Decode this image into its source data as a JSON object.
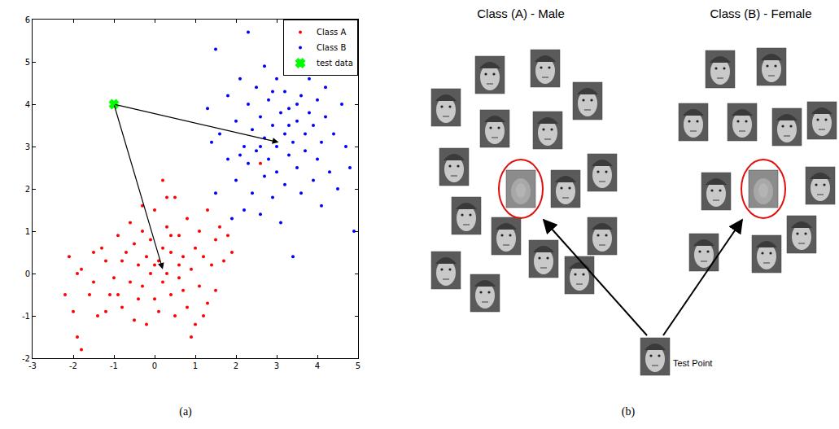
{
  "chart_data": {
    "type": "scatter",
    "xlim": [
      -3,
      5
    ],
    "xticks": [
      -3,
      -2,
      -1,
      0,
      1,
      2,
      3,
      4,
      5
    ],
    "ylim": [
      -2,
      6
    ],
    "yticks": [
      -2,
      -1,
      0,
      1,
      2,
      3,
      4,
      5,
      6
    ],
    "grid": false,
    "legend": "top right",
    "series": [
      {
        "name": "Class A",
        "color": "#ff0000",
        "marker": "dot",
        "x": [
          -2.2,
          -2.0,
          -1.9,
          -1.8,
          -1.9,
          -1.8,
          -1.6,
          -1.5,
          -1.4,
          -1.3,
          -1.2,
          -1.1,
          -1.0,
          -0.9,
          -0.8,
          -0.8,
          -0.7,
          -0.6,
          -0.6,
          -0.5,
          -0.5,
          -0.4,
          -0.4,
          -0.3,
          -0.3,
          -0.2,
          -0.2,
          -0.1,
          -0.1,
          0.0,
          0.0,
          0.1,
          0.1,
          0.2,
          0.2,
          0.3,
          0.3,
          0.4,
          0.4,
          0.5,
          0.5,
          0.6,
          0.6,
          0.7,
          0.7,
          0.8,
          0.8,
          0.9,
          1.0,
          1.0,
          1.1,
          1.1,
          1.2,
          1.3,
          1.3,
          1.4,
          1.5,
          1.5,
          1.6,
          1.7,
          1.8,
          1.9,
          0.2,
          0.3,
          -0.3,
          0.9,
          -1.5,
          -0.9,
          0.0,
          0.6,
          2.6,
          -2.1,
          -1.2,
          1.2,
          0.4
        ],
        "y": [
          -0.5,
          -0.9,
          -1.5,
          -1.8,
          0.0,
          0.1,
          -0.5,
          -0.2,
          -1.0,
          0.6,
          0.3,
          -0.5,
          -0.1,
          0.9,
          0.3,
          -0.8,
          0.5,
          -0.2,
          1.2,
          0.7,
          -1.1,
          0.2,
          -0.6,
          1.0,
          -0.3,
          0.4,
          -1.2,
          0.0,
          0.8,
          -0.6,
          1.5,
          0.3,
          -0.9,
          0.6,
          -0.2,
          1.1,
          0.0,
          -0.5,
          0.5,
          1.8,
          -1.0,
          0.2,
          0.9,
          -0.4,
          0.4,
          1.3,
          -0.8,
          0.1,
          0.6,
          -1.2,
          1.0,
          -0.3,
          0.4,
          -0.7,
          1.5,
          0.2,
          0.8,
          -0.4,
          1.1,
          0.3,
          0.9,
          0.5,
          2.2,
          1.8,
          1.6,
          -1.5,
          0.5,
          -0.5,
          0.2,
          -0.1,
          2.6,
          0.4,
          -0.9,
          -1.0,
          0.9
        ]
      },
      {
        "name": "Class B",
        "color": "#0000ff",
        "marker": "dot",
        "x": [
          1.5,
          2.3,
          1.3,
          1.4,
          1.5,
          1.6,
          1.8,
          1.8,
          1.9,
          2.0,
          2.0,
          2.1,
          2.2,
          2.2,
          2.3,
          2.3,
          2.4,
          2.4,
          2.5,
          2.5,
          2.6,
          2.6,
          2.7,
          2.7,
          2.7,
          2.8,
          2.8,
          2.9,
          2.9,
          3.0,
          3.0,
          3.0,
          3.1,
          3.1,
          3.2,
          3.2,
          3.2,
          3.3,
          3.3,
          3.4,
          3.4,
          3.4,
          3.5,
          3.5,
          3.6,
          3.6,
          3.7,
          3.7,
          3.8,
          3.8,
          3.9,
          3.9,
          4.0,
          4.0,
          4.1,
          4.1,
          4.2,
          4.2,
          4.3,
          4.4,
          4.5,
          4.6,
          4.7,
          4.8,
          4.9,
          3.3,
          2.9,
          2.6,
          3.5,
          2.1
        ],
        "y": [
          5.3,
          5.7,
          3.9,
          3.1,
          1.9,
          3.3,
          4.2,
          2.7,
          1.3,
          3.6,
          2.2,
          4.6,
          3.0,
          1.5,
          4.0,
          2.6,
          3.4,
          1.9,
          4.4,
          2.9,
          3.7,
          1.4,
          4.9,
          3.2,
          2.3,
          4.1,
          2.7,
          3.5,
          1.8,
          4.6,
          3.0,
          2.4,
          3.8,
          1.2,
          4.3,
          3.3,
          2.1,
          2.8,
          3.9,
          4.8,
          3.1,
          0.4,
          3.6,
          2.5,
          4.2,
          1.9,
          3.3,
          2.9,
          4.6,
          3.8,
          2.2,
          3.5,
          4.1,
          2.7,
          3.1,
          1.6,
          3.7,
          4.4,
          2.4,
          3.3,
          2.0,
          4.0,
          3.0,
          2.5,
          1.0,
          3.5,
          4.3,
          3.0,
          4.0,
          2.8
        ]
      },
      {
        "name": "test data",
        "color": "#00ff00",
        "marker": "x",
        "x": [
          -1
        ],
        "y": [
          4
        ]
      }
    ],
    "arrows": [
      {
        "from": [
          -1,
          4
        ],
        "to": [
          0.2,
          0.1
        ]
      },
      {
        "from": [
          -1,
          4
        ],
        "to": [
          3.05,
          3.1
        ]
      }
    ]
  },
  "panel_labels": [
    "(a)",
    "(b)"
  ],
  "diagram": {
    "groups": [
      {
        "title": "Class (A) - Male"
      },
      {
        "title": "Class (B) - Female"
      }
    ],
    "test_point": "Test Point"
  }
}
